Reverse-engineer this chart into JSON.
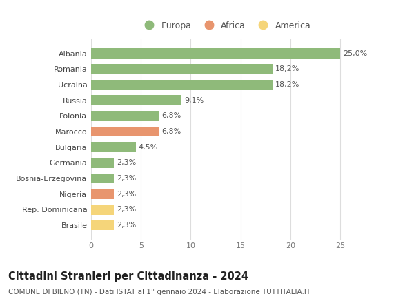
{
  "categories": [
    "Brasile",
    "Rep. Dominicana",
    "Nigeria",
    "Bosnia-Erzegovina",
    "Germania",
    "Bulgaria",
    "Marocco",
    "Polonia",
    "Russia",
    "Ucraina",
    "Romania",
    "Albania"
  ],
  "values": [
    2.3,
    2.3,
    2.3,
    2.3,
    2.3,
    4.5,
    6.8,
    6.8,
    9.1,
    18.2,
    18.2,
    25.0
  ],
  "labels": [
    "2,3%",
    "2,3%",
    "2,3%",
    "2,3%",
    "2,3%",
    "4,5%",
    "6,8%",
    "6,8%",
    "9,1%",
    "18,2%",
    "18,2%",
    "25,0%"
  ],
  "colors": [
    "#f5d57a",
    "#f5d57a",
    "#e8956e",
    "#8fba7a",
    "#8fba7a",
    "#8fba7a",
    "#e8956e",
    "#8fba7a",
    "#8fba7a",
    "#8fba7a",
    "#8fba7a",
    "#8fba7a"
  ],
  "legend": [
    {
      "label": "Europa",
      "color": "#8fba7a"
    },
    {
      "label": "Africa",
      "color": "#e8956e"
    },
    {
      "label": "America",
      "color": "#f5d57a"
    }
  ],
  "xlim": [
    0,
    27
  ],
  "xticks": [
    0,
    5,
    10,
    15,
    20,
    25
  ],
  "title": "Cittadini Stranieri per Cittadinanza - 2024",
  "subtitle": "COMUNE DI BIENO (TN) - Dati ISTAT al 1° gennaio 2024 - Elaborazione TUTTITALIA.IT",
  "bg_color": "#ffffff",
  "grid_color": "#dddddd",
  "bar_height": 0.65,
  "label_fontsize": 8,
  "title_fontsize": 10.5,
  "subtitle_fontsize": 7.5,
  "tick_fontsize": 8,
  "legend_fontsize": 9,
  "ytick_fontsize": 8
}
